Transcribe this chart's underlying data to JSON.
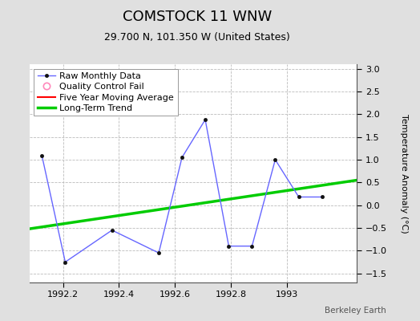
{
  "title": "COMSTOCK 11 WNW",
  "subtitle": "29.700 N, 101.350 W (United States)",
  "ylabel": "Temperature Anomaly (°C)",
  "attribution": "Berkeley Earth",
  "xlim": [
    1992.08,
    1993.25
  ],
  "ylim": [
    -1.7,
    3.1
  ],
  "yticks": [
    -1.5,
    -1.0,
    -0.5,
    0.0,
    0.5,
    1.0,
    1.5,
    2.0,
    2.5,
    3.0
  ],
  "xticks": [
    1992.2,
    1992.4,
    1992.6,
    1992.8,
    1993.0
  ],
  "raw_x": [
    1992.125,
    1992.208,
    1992.375,
    1992.542,
    1992.625,
    1992.708,
    1992.792,
    1992.875,
    1992.958,
    1993.042,
    1993.125
  ],
  "raw_y": [
    1.08,
    -1.25,
    -0.55,
    -1.05,
    1.05,
    1.88,
    -0.9,
    -0.9,
    1.0,
    0.18,
    0.18
  ],
  "trend_x": [
    1992.08,
    1993.25
  ],
  "trend_y": [
    -0.52,
    0.55
  ],
  "background_color": "#e0e0e0",
  "plot_bg_color": "#ffffff",
  "raw_line_color": "#6666ff",
  "raw_marker_color": "#111111",
  "trend_color": "#00cc00",
  "mavg_color": "#ff0000",
  "qc_color": "#ff88bb",
  "grid_color": "#bbbbbb",
  "title_fontsize": 13,
  "subtitle_fontsize": 9,
  "label_fontsize": 8,
  "tick_fontsize": 8,
  "legend_fontsize": 8
}
